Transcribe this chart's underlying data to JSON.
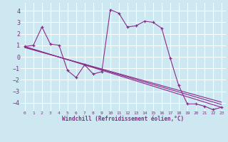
{
  "xlabel": "Windchill (Refroidissement éolien,°C)",
  "background_color": "#cde8f0",
  "grid_color": "#ffffff",
  "line_color": "#8b2a8b",
  "xlim": [
    -0.5,
    23.5
  ],
  "ylim": [
    -4.7,
    4.7
  ],
  "yticks": [
    -4,
    -3,
    -2,
    -1,
    0,
    1,
    2,
    3,
    4
  ],
  "xticks": [
    0,
    1,
    2,
    3,
    4,
    5,
    6,
    7,
    8,
    9,
    10,
    11,
    12,
    13,
    14,
    15,
    16,
    17,
    18,
    19,
    20,
    21,
    22,
    23
  ],
  "series1_x": [
    0,
    1,
    2,
    3,
    4,
    5,
    6,
    7,
    8,
    9,
    10,
    11,
    12,
    13,
    14,
    15,
    16,
    17,
    18,
    19,
    20,
    21,
    22,
    23
  ],
  "series1_y": [
    0.9,
    1.0,
    2.6,
    1.1,
    1.0,
    -1.2,
    -1.8,
    -0.7,
    -1.5,
    -1.3,
    4.1,
    3.8,
    2.6,
    2.7,
    3.1,
    3.0,
    2.5,
    -0.1,
    -2.5,
    -4.1,
    -4.1,
    -4.3,
    -4.6,
    -4.4
  ],
  "series2_x": [
    0,
    23
  ],
  "series2_y": [
    0.9,
    -4.4
  ],
  "series3_x": [
    0,
    23
  ],
  "series3_y": [
    0.85,
    -4.15
  ],
  "series4_x": [
    0,
    23
  ],
  "series4_y": [
    0.8,
    -3.95
  ]
}
